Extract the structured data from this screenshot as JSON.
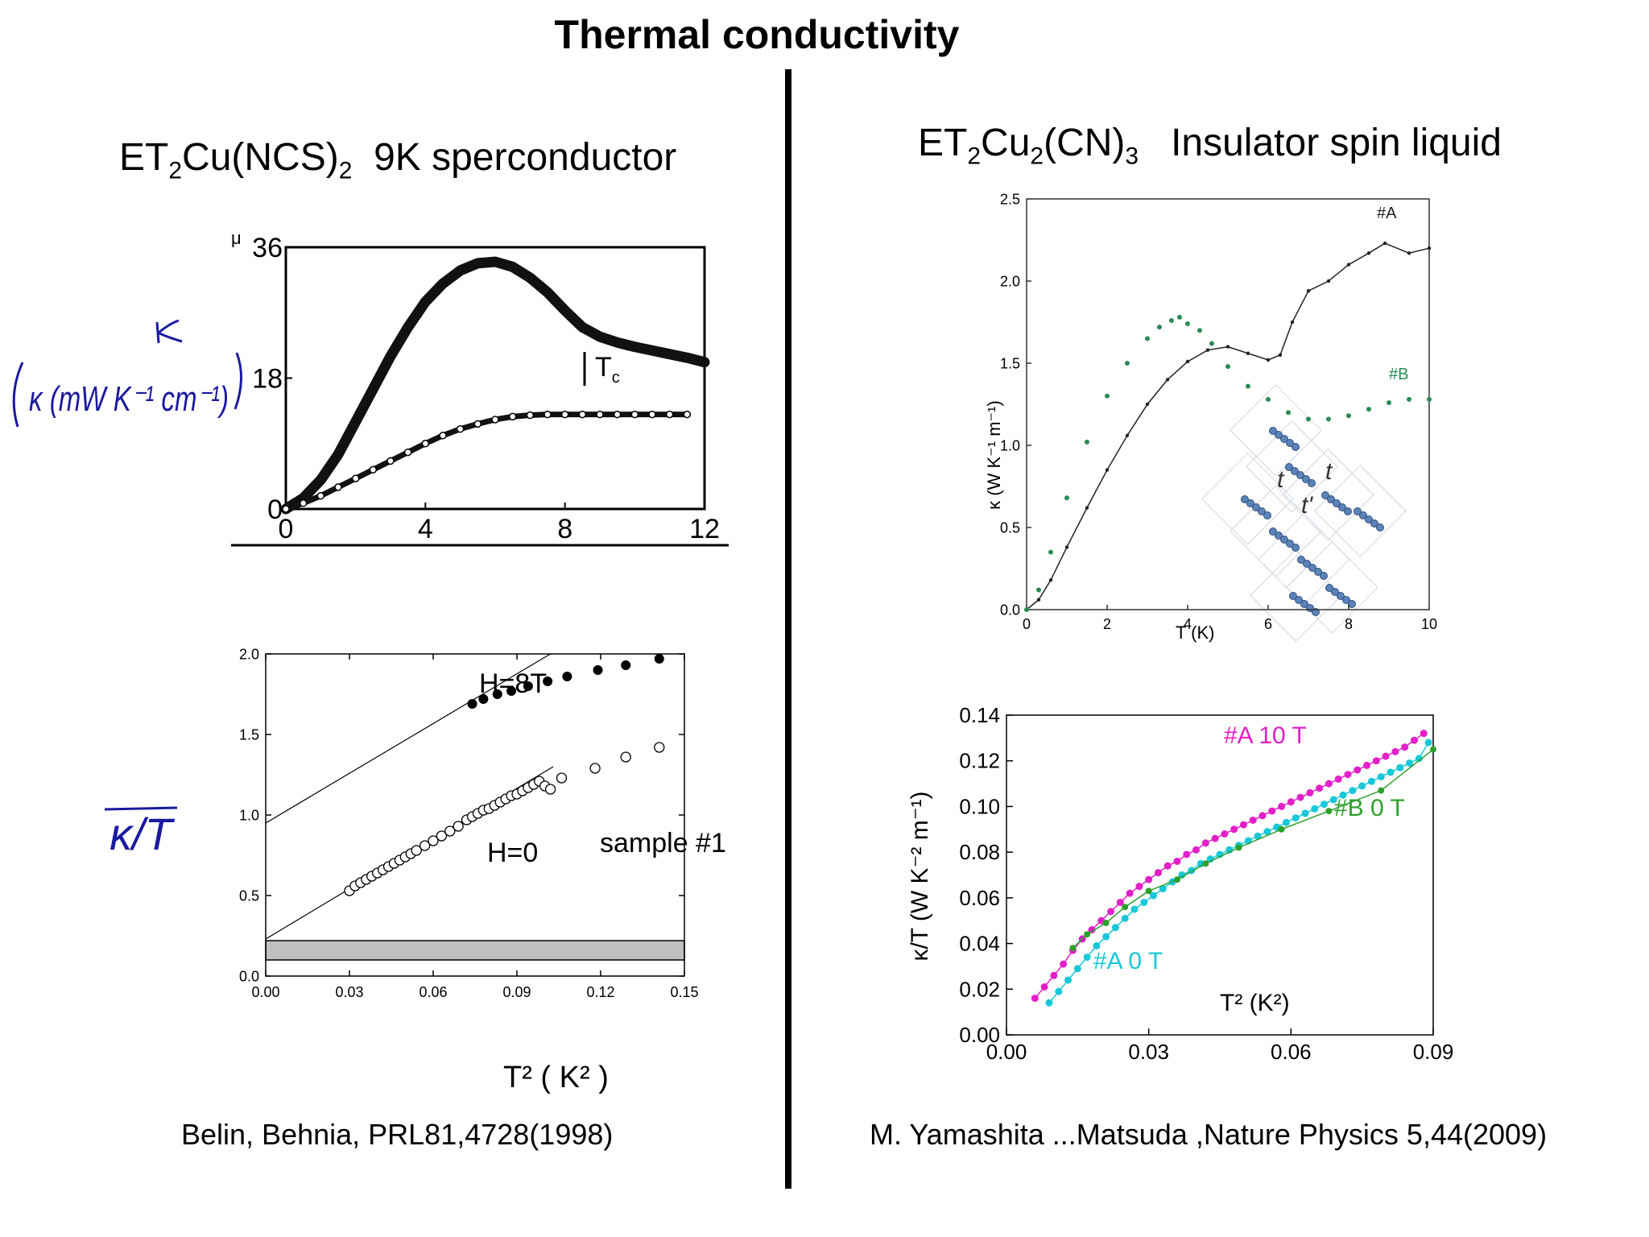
{
  "slide": {
    "title": "Thermal conductivity",
    "left": {
      "heading": {
        "base1": "ET",
        "sub1": "2",
        "base2": "Cu(NCS)",
        "sub2": "2",
        "rest": "9K sperconductor"
      },
      "citation": "Belin, Behnia, PRL81,4728(1998)"
    },
    "right": {
      "heading": {
        "base1": "ET",
        "sub1": "2",
        "base2": "Cu",
        "sub2": "2",
        "base3": "(CN)",
        "sub3": "3",
        "rest": "Insulator spin liquid"
      },
      "citation": "M. Yamashita ...Matsuda ,Nature Physics 5,44(2009)"
    },
    "handwritten": {
      "kappa_units": "κ (mW K⁻¹ cm⁻¹)",
      "kappa_over_T": "κ/T",
      "color": "#1a1aa0"
    }
  },
  "chart_data": [
    {
      "type": "scatter",
      "id": "kappa-vs-T-ncs",
      "xlabel": "",
      "ylabel": "",
      "xlim": [
        0,
        12
      ],
      "ylim": [
        0,
        36
      ],
      "xticks": [
        "0",
        "4",
        "8",
        "12"
      ],
      "yticks": [
        "0",
        "18",
        "36"
      ],
      "corner_label": "μ",
      "annotation": "T",
      "annotation_sub": "c",
      "series": [
        {
          "x": [
            0,
            0.5,
            1,
            1.5,
            2,
            2.5,
            3,
            3.5,
            4,
            4.5,
            5,
            5.5,
            6,
            6.5,
            7,
            7.5,
            8,
            8.5,
            9,
            9.5,
            10,
            10.5,
            11,
            11.5,
            12
          ],
          "y": [
            0,
            1.5,
            4,
            7.5,
            12,
            16.5,
            21,
            25,
            28.5,
            31,
            32.8,
            33.8,
            34,
            33.3,
            31.8,
            29.8,
            27.3,
            25,
            23.7,
            22.9,
            22.3,
            21.8,
            21.3,
            20.8,
            20.2
          ]
        },
        {
          "x": [
            0,
            0.5,
            1,
            1.5,
            2,
            2.5,
            3,
            3.5,
            4,
            4.5,
            5,
            5.5,
            6,
            6.5,
            7,
            7.5,
            8,
            8.5,
            9,
            9.5,
            10,
            10.5,
            11,
            11.5
          ],
          "y": [
            0,
            0.8,
            1.8,
            3,
            4.2,
            5.4,
            6.6,
            7.8,
            9,
            10.1,
            11,
            11.7,
            12.3,
            12.7,
            12.9,
            13,
            13,
            13,
            13,
            13,
            13,
            13,
            13,
            13
          ]
        }
      ]
    },
    {
      "type": "scatter",
      "id": "kappa-over-T-vs-T2-ncs",
      "xlabel": "T² ( K² )",
      "ylabel": "",
      "xlim": [
        0,
        0.15
      ],
      "ylim": [
        0,
        2.0
      ],
      "xticks": [
        "0.00",
        "0.03",
        "0.06",
        "0.09",
        "0.12",
        "0.15"
      ],
      "yticks": [
        "0.0",
        "0.5",
        "1.0",
        "1.5",
        "2.0"
      ],
      "annotations": [
        "H=8T",
        "H=0",
        "sample #1"
      ],
      "shaded_band": [
        0.1,
        0.22
      ],
      "fit_lines": [
        {
          "x": [
            0,
            0.102
          ],
          "y": [
            0.95,
            2.0
          ]
        },
        {
          "x": [
            0,
            0.103
          ],
          "y": [
            0.23,
            1.3
          ]
        }
      ],
      "series": [
        {
          "name": "H=8T",
          "x": [
            0.074,
            0.078,
            0.083,
            0.088,
            0.094,
            0.101,
            0.108,
            0.119,
            0.129,
            0.141
          ],
          "y": [
            1.69,
            1.72,
            1.75,
            1.77,
            1.8,
            1.83,
            1.86,
            1.9,
            1.93,
            1.97
          ]
        },
        {
          "name": "H=0",
          "x": [
            0.03,
            0.032,
            0.034,
            0.036,
            0.038,
            0.04,
            0.042,
            0.044,
            0.046,
            0.048,
            0.05,
            0.052,
            0.054,
            0.057,
            0.06,
            0.063,
            0.066,
            0.069,
            0.072,
            0.074,
            0.076,
            0.078,
            0.08,
            0.082,
            0.084,
            0.086,
            0.088,
            0.09,
            0.092,
            0.094,
            0.096,
            0.098,
            0.1,
            0.102,
            0.106,
            0.118,
            0.129,
            0.141
          ],
          "y": [
            0.53,
            0.56,
            0.58,
            0.6,
            0.62,
            0.64,
            0.66,
            0.68,
            0.7,
            0.72,
            0.74,
            0.76,
            0.78,
            0.81,
            0.84,
            0.87,
            0.9,
            0.93,
            0.97,
            0.99,
            1.01,
            1.03,
            1.04,
            1.06,
            1.08,
            1.1,
            1.12,
            1.13,
            1.15,
            1.17,
            1.19,
            1.21,
            1.18,
            1.16,
            1.23,
            1.29,
            1.36,
            1.42
          ]
        }
      ]
    },
    {
      "type": "line",
      "id": "kappa-vs-T-cn",
      "xlabel": "T (K)",
      "ylabel": "κ (W K⁻¹ m⁻¹)",
      "xlim": [
        0,
        10
      ],
      "ylim": [
        0,
        2.5
      ],
      "xticks": [
        "0",
        "2",
        "4",
        "6",
        "8",
        "10"
      ],
      "yticks": [
        "0.0",
        "0.5",
        "1.0",
        "1.5",
        "2.0",
        "2.5"
      ],
      "inset_labels": [
        "t",
        "t",
        "t'"
      ],
      "series": [
        {
          "name": "#A",
          "color": "#222222",
          "x": [
            0,
            0.3,
            0.6,
            1,
            1.5,
            2,
            2.5,
            3,
            3.5,
            4,
            4.5,
            5,
            5.5,
            6,
            6.3,
            6.6,
            7,
            7.5,
            8,
            8.5,
            8.9,
            9.5,
            10
          ],
          "y": [
            0,
            0.06,
            0.18,
            0.38,
            0.62,
            0.85,
            1.06,
            1.25,
            1.4,
            1.51,
            1.58,
            1.6,
            1.56,
            1.52,
            1.55,
            1.75,
            1.94,
            2.0,
            2.1,
            2.17,
            2.23,
            2.17,
            2.2
          ]
        },
        {
          "name": "#B",
          "color": "#2a8a55",
          "x": [
            0,
            0.3,
            0.6,
            1,
            1.5,
            2,
            2.5,
            3,
            3.3,
            3.6,
            3.8,
            4,
            4.3,
            4.6,
            5,
            5.5,
            6,
            6.5,
            7,
            7.5,
            8,
            8.5,
            9,
            9.5,
            10
          ],
          "y": [
            0,
            0.12,
            0.35,
            0.68,
            1.02,
            1.3,
            1.5,
            1.65,
            1.72,
            1.76,
            1.78,
            1.74,
            1.7,
            1.62,
            1.48,
            1.36,
            1.28,
            1.2,
            1.16,
            1.16,
            1.18,
            1.22,
            1.26,
            1.28,
            1.28
          ]
        }
      ]
    },
    {
      "type": "line",
      "id": "kappa-over-T-vs-T2-cn",
      "xlabel": "T² (K²)",
      "ylabel": "κ/T (W K⁻² m⁻¹)",
      "xlim": [
        0,
        0.09
      ],
      "ylim": [
        0,
        0.14
      ],
      "xticks": [
        "0.00",
        "0.03",
        "0.06",
        "0.09"
      ],
      "yticks": [
        "0.00",
        "0.02",
        "0.04",
        "0.06",
        "0.08",
        "0.10",
        "0.12",
        "0.14"
      ],
      "series": [
        {
          "name": "#A 10 T",
          "color": "#e21fc8",
          "x": [
            0.006,
            0.008,
            0.01,
            0.012,
            0.014,
            0.016,
            0.018,
            0.02,
            0.022,
            0.024,
            0.026,
            0.028,
            0.03,
            0.032,
            0.034,
            0.036,
            0.038,
            0.04,
            0.042,
            0.044,
            0.046,
            0.048,
            0.05,
            0.052,
            0.054,
            0.056,
            0.058,
            0.06,
            0.062,
            0.064,
            0.066,
            0.068,
            0.07,
            0.072,
            0.074,
            0.076,
            0.078,
            0.08,
            0.082,
            0.084,
            0.086,
            0.088
          ],
          "y": [
            0.016,
            0.021,
            0.026,
            0.031,
            0.037,
            0.042,
            0.046,
            0.05,
            0.054,
            0.058,
            0.062,
            0.065,
            0.068,
            0.071,
            0.074,
            0.076,
            0.079,
            0.081,
            0.084,
            0.086,
            0.088,
            0.09,
            0.092,
            0.094,
            0.096,
            0.098,
            0.1,
            0.102,
            0.104,
            0.106,
            0.108,
            0.11,
            0.112,
            0.114,
            0.116,
            0.118,
            0.12,
            0.122,
            0.124,
            0.126,
            0.129,
            0.132
          ]
        },
        {
          "name": "#A 0 T",
          "color": "#18c8d8",
          "x": [
            0.009,
            0.011,
            0.013,
            0.015,
            0.017,
            0.019,
            0.021,
            0.023,
            0.025,
            0.027,
            0.029,
            0.031,
            0.033,
            0.035,
            0.037,
            0.039,
            0.041,
            0.043,
            0.045,
            0.047,
            0.049,
            0.051,
            0.053,
            0.055,
            0.057,
            0.059,
            0.061,
            0.063,
            0.065,
            0.067,
            0.069,
            0.071,
            0.073,
            0.075,
            0.077,
            0.079,
            0.081,
            0.083,
            0.085,
            0.087,
            0.089
          ],
          "y": [
            0.014,
            0.019,
            0.024,
            0.029,
            0.034,
            0.039,
            0.043,
            0.047,
            0.051,
            0.055,
            0.058,
            0.061,
            0.064,
            0.067,
            0.07,
            0.072,
            0.075,
            0.077,
            0.079,
            0.081,
            0.083,
            0.085,
            0.087,
            0.089,
            0.091,
            0.093,
            0.095,
            0.097,
            0.099,
            0.101,
            0.103,
            0.105,
            0.107,
            0.109,
            0.111,
            0.113,
            0.115,
            0.117,
            0.119,
            0.121,
            0.128
          ]
        },
        {
          "name": "#B 0 T",
          "color": "#2da02d",
          "x": [
            0.014,
            0.017,
            0.021,
            0.025,
            0.03,
            0.036,
            0.042,
            0.049,
            0.058,
            0.068,
            0.079,
            0.09
          ],
          "y": [
            0.038,
            0.044,
            0.049,
            0.056,
            0.063,
            0.068,
            0.075,
            0.082,
            0.09,
            0.098,
            0.107,
            0.125
          ]
        }
      ]
    }
  ]
}
